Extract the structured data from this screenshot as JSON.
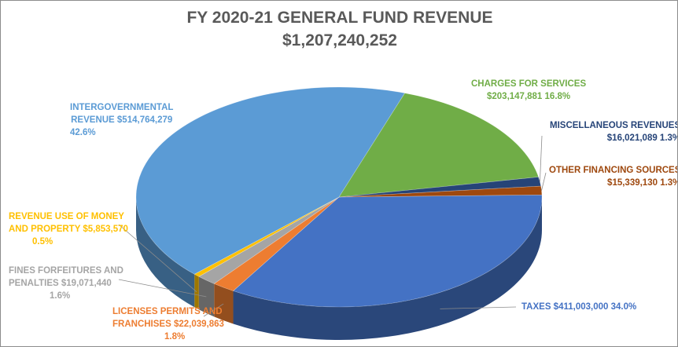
{
  "chart_data": {
    "type": "pie",
    "title": "FY 2020-21 GENERAL FUND REVENUE",
    "subtitle": "$1,207,240,252",
    "slices": [
      {
        "key": "taxes",
        "name": "TAXES",
        "value": 411003000,
        "value_label": "$411,003,000",
        "percent": 34.0,
        "percent_label": "34.0%",
        "color": "#4472C4"
      },
      {
        "key": "licenses",
        "name": "LICENSES PERMITS AND FRANCHISES",
        "value": 22039863,
        "value_label": "$22,039,863",
        "percent": 1.8,
        "percent_label": "1.8%",
        "color": "#ED7D31"
      },
      {
        "key": "fines",
        "name": "FINES FORFEITURES AND PENALTIES",
        "value": 19071440,
        "value_label": "$19,071,440",
        "percent": 1.6,
        "percent_label": "1.6%",
        "color": "#A5A5A5"
      },
      {
        "key": "money",
        "name": "REVENUE USE OF MONEY AND PROPERTY",
        "value": 5853570,
        "value_label": "$5,853,570",
        "percent": 0.5,
        "percent_label": "0.5%",
        "color": "#FFC000"
      },
      {
        "key": "intergov",
        "name": "INTERGOVERNMENTAL REVENUE",
        "value": 514764279,
        "value_label": "$514,764,279",
        "percent": 42.6,
        "percent_label": "42.6%",
        "color": "#5B9BD5"
      },
      {
        "key": "charges",
        "name": "CHARGES FOR SERVICES",
        "value": 203147881,
        "value_label": "$203,147,881",
        "percent": 16.8,
        "percent_label": "16.8%",
        "color": "#70AD47"
      },
      {
        "key": "misc",
        "name": "MISCELLANEOUS REVENUES",
        "value": 16021089,
        "value_label": "$16,021,089",
        "percent": 1.3,
        "percent_label": "1.3%",
        "color": "#264478"
      },
      {
        "key": "other",
        "name": "OTHER FINANCING SOURCES",
        "value": 15339130,
        "value_label": "$15,339,130",
        "percent": 1.3,
        "percent_label": "1.3%",
        "color": "#9E480E"
      }
    ],
    "label_colors": {
      "taxes": "#4472C4",
      "licenses": "#ED7D31",
      "fines": "#A5A5A5",
      "money": "#FFC000",
      "intergov": "#5B9BD5",
      "charges": "#70AD47",
      "misc": "#264478",
      "other": "#9E480E"
    }
  },
  "labels": {
    "taxes": {
      "line1": "TAXES  $411,003,000  34.0%"
    },
    "licenses": {
      "line1": "LICENSES PERMITS AND",
      "line2": "FRANCHISES  $22,039,863",
      "line3": "1.8%"
    },
    "fines": {
      "line1": "FINES FORFEITURES AND",
      "line2": "PENALTIES  $19,071,440",
      "line3": "1.6%"
    },
    "money": {
      "line1": "REVENUE USE OF MONEY",
      "line2": "AND PROPERTY  $5,853,570",
      "line3": "0.5%"
    },
    "intergov": {
      "line1": "INTERGOVERNMENTAL",
      "line2": "REVENUE  $514,764,279",
      "line3": "42.6%"
    },
    "charges": {
      "line1": "CHARGES FOR SERVICES",
      "line2": "$203,147,881  16.8%"
    },
    "misc": {
      "line1": "MISCELLANEOUS REVENUES",
      "line2": "$16,021,089  1.3%"
    },
    "other": {
      "line1": "OTHER FINANCING SOURCES",
      "line2": "$15,339,130  1.3%"
    }
  }
}
